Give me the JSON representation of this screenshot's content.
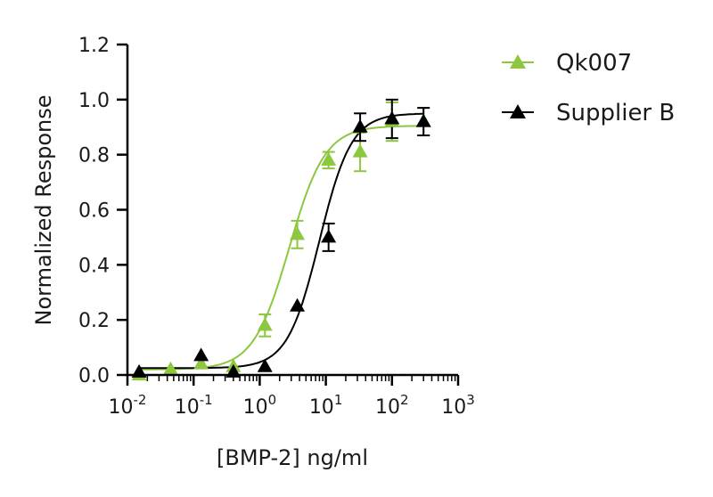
{
  "chart_data": {
    "type": "scatter",
    "title": "",
    "xlabel": "[BMP-2] ng/ml",
    "ylabel": "Normalized Response",
    "x_scale": "log",
    "xlim": [
      0.01,
      1000
    ],
    "ylim": [
      0.0,
      1.2
    ],
    "x_ticks": [
      {
        "base": "10",
        "exp": "-2"
      },
      {
        "base": "10",
        "exp": "-1"
      },
      {
        "base": "10",
        "exp": "0"
      },
      {
        "base": "10",
        "exp": "1"
      },
      {
        "base": "10",
        "exp": "2"
      },
      {
        "base": "10",
        "exp": "3"
      }
    ],
    "y_ticks": [
      "0.0",
      "0.2",
      "0.4",
      "0.6",
      "0.8",
      "1.0",
      "1.2"
    ],
    "grid": false,
    "legend_position": "top-right",
    "series": [
      {
        "name": "Qk007",
        "color": "#8dc63f",
        "marker": "triangle",
        "fit": {
          "bottom": 0.02,
          "top": 0.905,
          "ec50": 2.8,
          "hill": 1.6
        },
        "points": [
          {
            "x": 0.015,
            "y": 0.0,
            "err": 0.0
          },
          {
            "x": 0.045,
            "y": 0.02,
            "err": 0.0
          },
          {
            "x": 0.13,
            "y": 0.04,
            "err": 0.0
          },
          {
            "x": 0.4,
            "y": 0.03,
            "err": 0.0
          },
          {
            "x": 1.2,
            "y": 0.18,
            "err": 0.04
          },
          {
            "x": 3.7,
            "y": 0.51,
            "err": 0.05
          },
          {
            "x": 11,
            "y": 0.78,
            "err": 0.03
          },
          {
            "x": 33,
            "y": 0.81,
            "err": 0.07
          },
          {
            "x": 100,
            "y": 0.92,
            "err": 0.07
          },
          {
            "x": 300,
            "y": 0.92,
            "err": 0.05
          }
        ]
      },
      {
        "name": "Supplier B",
        "color": "#000000",
        "marker": "triangle",
        "fit": {
          "bottom": 0.025,
          "top": 0.95,
          "ec50": 8.0,
          "hill": 1.8
        },
        "points": [
          {
            "x": 0.015,
            "y": 0.01,
            "err": 0.0
          },
          {
            "x": 0.13,
            "y": 0.07,
            "err": 0.0
          },
          {
            "x": 0.4,
            "y": 0.01,
            "err": 0.0
          },
          {
            "x": 1.2,
            "y": 0.03,
            "err": 0.0
          },
          {
            "x": 3.7,
            "y": 0.25,
            "err": 0.0
          },
          {
            "x": 11,
            "y": 0.5,
            "err": 0.05
          },
          {
            "x": 33,
            "y": 0.9,
            "err": 0.05
          },
          {
            "x": 100,
            "y": 0.93,
            "err": 0.07
          },
          {
            "x": 300,
            "y": 0.92,
            "err": 0.05
          }
        ]
      }
    ]
  }
}
